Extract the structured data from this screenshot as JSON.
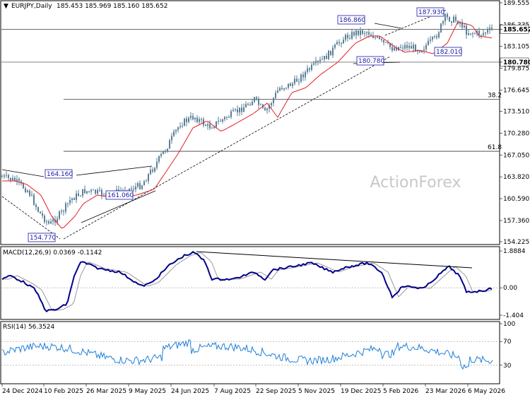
{
  "chart_data": [
    {
      "type": "candlestick",
      "title": "EURJPY,Daily",
      "ohlc": "185.453 185.969 185.160 185.652",
      "watermark": "ActionForex",
      "y_ticks": [
        "189.555",
        "186.335",
        "185.652",
        "183.105",
        "180.780",
        "179.875",
        "176.645",
        "173.510",
        "170.280",
        "167.050",
        "163.820",
        "160.590",
        "157.360",
        "154.225"
      ],
      "ylim": [
        154.225,
        189.555
      ],
      "x_ticks": [
        "24 Dec 2024",
        "10 Feb 2025",
        "26 Mar 2025",
        "9 May 2025",
        "24 Jun 2025",
        "7 Aug 2025",
        "22 Sep 2025",
        "5 Nov 2025",
        "19 Dec 2025",
        "5 Feb 2026",
        "23 Mar 2026",
        "6 May 2026"
      ],
      "price_labels": [
        {
          "text": "164.160",
          "value": 164.16
        },
        {
          "text": "161.060",
          "value": 161.06
        },
        {
          "text": "154.770",
          "value": 154.77
        },
        {
          "text": "186.860",
          "value": 186.86
        },
        {
          "text": "180.780",
          "value": 180.78
        },
        {
          "text": "187.930",
          "value": 187.93
        },
        {
          "text": "182.010",
          "value": 182.01
        }
      ],
      "horizontal_levels": [
        {
          "value": 185.652,
          "label": ""
        },
        {
          "value": 180.78,
          "label": ""
        },
        {
          "value": 175.3,
          "label": "38.2"
        },
        {
          "value": 167.6,
          "label": "61.8"
        }
      ],
      "last_price": "185.652",
      "last_price_color": "#000000",
      "level_price": "180.780",
      "candle_color": "#5a7f96",
      "ma_color": "#e0202a"
    },
    {
      "type": "line",
      "title": "MACD(12,26,9) 0.0369 -0.1142",
      "y_ticks": [
        "1.8884",
        "0.00",
        "-1.404"
      ],
      "ylim": [
        -1.55,
        2.0
      ],
      "series_colors": {
        "macd": "#00008b",
        "signal": "#9a9a9a"
      }
    },
    {
      "type": "line",
      "title": "RSI(14) 56.3524",
      "y_ticks": [
        "100",
        "70",
        "30",
        "0"
      ],
      "ylim": [
        0,
        100
      ],
      "series_colors": {
        "rsi": "#1e7fd8"
      }
    }
  ]
}
